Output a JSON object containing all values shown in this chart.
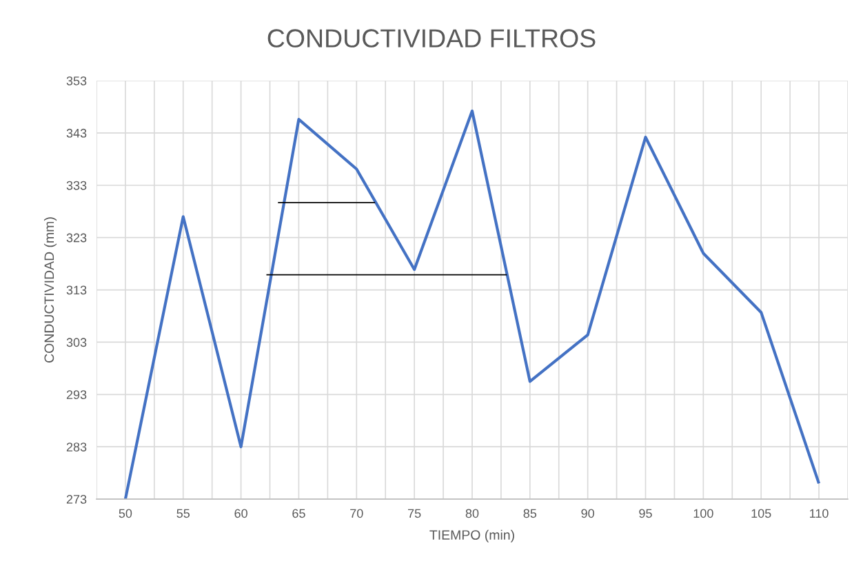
{
  "chart_data": {
    "type": "line",
    "title": "CONDUCTIVIDAD FILTROS",
    "xlabel": "TIEMPO (min)",
    "ylabel": "CONDUCTIVIDAD (mm)",
    "x": [
      50,
      55,
      60,
      65,
      70,
      75,
      80,
      85,
      90,
      95,
      100,
      105,
      110
    ],
    "series": [
      {
        "color": "#4472c4",
        "values": [
          273,
          327,
          283,
          345.6,
          336.1,
          316.9,
          347.2,
          295.5,
          304.4,
          342.2,
          320,
          308.7,
          276
        ]
      },
      {
        "color": "#000000",
        "x": [
          63.2,
          71.6
        ],
        "values": [
          329.7,
          329.7
        ]
      },
      {
        "color": "#000000",
        "x": [
          62.2,
          83.0
        ],
        "values": [
          315.9,
          315.9
        ]
      }
    ],
    "xlim": [
      47.5,
      112.5
    ],
    "xticks": [
      {
        "value": 47.5,
        "label": null
      },
      50,
      {
        "value": 52.5,
        "label": null
      },
      55,
      {
        "value": 57.5,
        "label": null
      },
      60,
      {
        "value": 62.5,
        "label": null
      },
      65,
      {
        "value": 67.5,
        "label": null
      },
      70,
      {
        "value": 72.5,
        "label": null
      },
      75,
      {
        "value": 77.5,
        "label": null
      },
      80,
      {
        "value": 82.5,
        "label": null
      },
      85,
      {
        "value": 87.5,
        "label": null
      },
      90,
      {
        "value": 92.5,
        "label": null
      },
      95,
      {
        "value": 97.5,
        "label": null
      },
      100,
      {
        "value": 102.5,
        "label": null
      },
      105,
      {
        "value": 107.5,
        "label": null
      },
      110,
      {
        "value": 112.5,
        "label": null
      }
    ],
    "ylim": [
      273,
      353
    ],
    "yticks": [
      273,
      283,
      293,
      303,
      313,
      323,
      333,
      343,
      353
    ],
    "grid": true,
    "marker": "none",
    "line_style": "solid"
  }
}
